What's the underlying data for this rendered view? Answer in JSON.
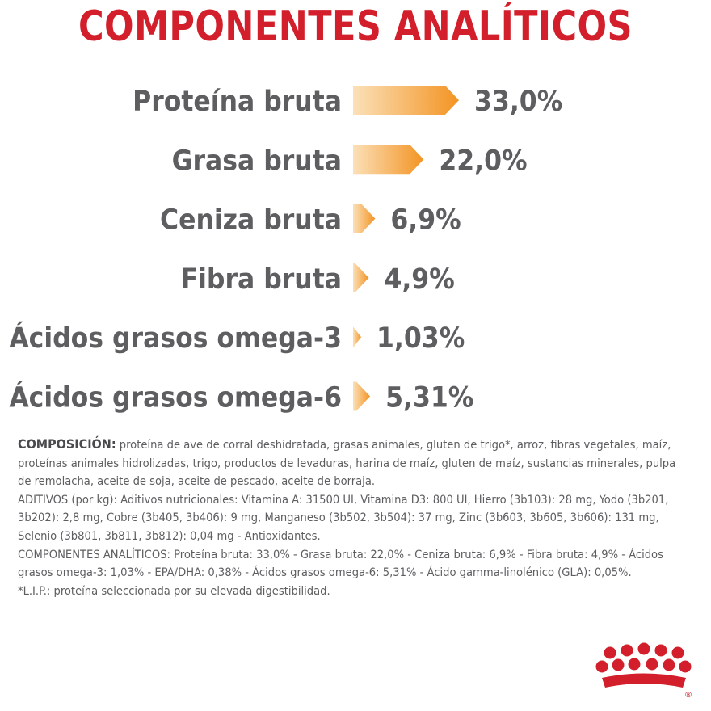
{
  "colors": {
    "title": "#d21f2b",
    "bar_start": "#fbe0b8",
    "bar_end": "#f39423",
    "text": "#5e5e61",
    "logo": "#d21f2b"
  },
  "chart_data": {
    "type": "bar",
    "orientation": "horizontal",
    "title": "COMPONENTES ANALÍTICOS",
    "unit": "%",
    "categories": [
      "Proteína bruta",
      "Grasa bruta",
      "Ceniza bruta",
      "Fibra bruta",
      "Ácidos grasos omega-3",
      "Ácidos grasos omega-6"
    ],
    "values": [
      33.0,
      22.0,
      6.9,
      4.9,
      1.03,
      5.31
    ],
    "value_labels": [
      "33,0%",
      "22,0%",
      "6,9%",
      "4,9%",
      "1,03%",
      "5,31%"
    ]
  },
  "composition": {
    "heading": "COMPOSICIÓN:",
    "ingredients": "proteína de ave de corral deshidratada, grasas animales, gluten de trigo*, arroz, fibras vegetales, maíz, proteínas animales hidrolizadas, trigo, productos de levaduras, harina de maíz, gluten de maíz, sustancias minerales, pulpa de remolacha, aceite de soja, aceite de pescado, aceite de borraja.",
    "additives": "ADITIVOS (por kg): Aditivos nutricionales: Vitamina A: 31500 UI, Vitamina D3: 800 UI, Hierro (3b103): 28 mg, Yodo (3b201, 3b202): 2,8 mg, Cobre (3b405, 3b406): 9 mg, Manganeso (3b502, 3b504): 37 mg, Zinc (3b603, 3b605, 3b606): 131 mg, Selenio (3b801, 3b811, 3b812): 0,04 mg - Antioxidantes.",
    "analytical": "COMPONENTES ANALÍTICOS: Proteína bruta: 33,0% - Grasa bruta: 22,0% - Ceniza bruta: 6,9% - Fibra bruta: 4,9% - Ácidos grasos omega-3: 1,03% - EPA/DHA: 0,38% - Ácidos grasos omega-6: 5,31% - Ácido gamma-linolénico (GLA): 0,05%.",
    "footnote": "*L.I.P.: proteína seleccionada por su elevada digestibilidad."
  },
  "logo": {
    "icon": "crown-icon",
    "mark": "®"
  }
}
